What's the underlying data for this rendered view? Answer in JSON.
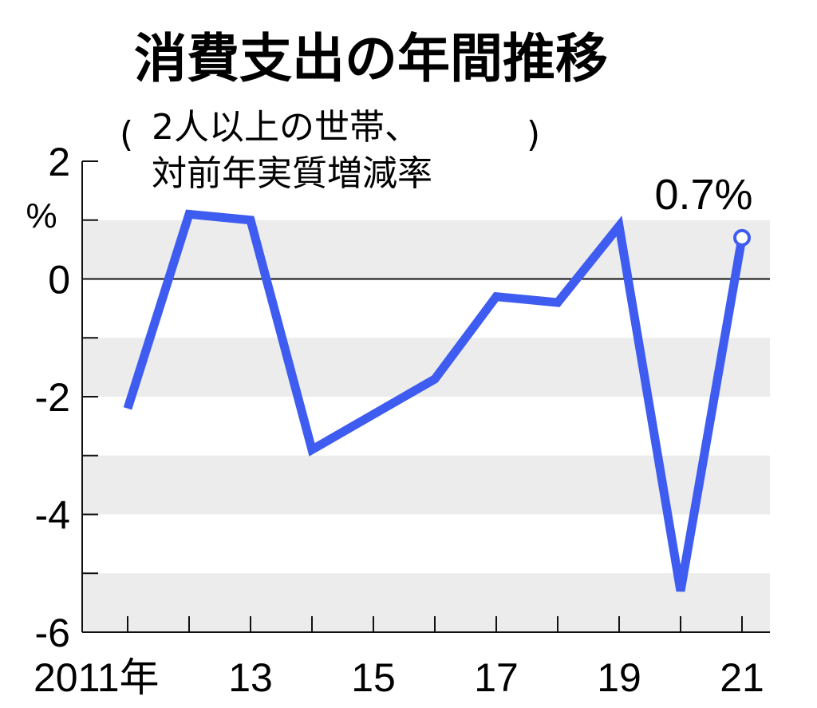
{
  "chart_data": {
    "type": "line",
    "title": "消費支出の年間推移",
    "subtitle_line1": "2人以上の世帯、",
    "subtitle_line2": "対前年実質増減率",
    "ylabel": "%",
    "ylim": [
      -6,
      2
    ],
    "grid": "alternating horizontal bands",
    "x": [
      2011,
      2012,
      2013,
      2014,
      2015,
      2016,
      2017,
      2018,
      2019,
      2020,
      2021
    ],
    "y_ticks": [
      2,
      0,
      -2,
      -4,
      -6
    ],
    "y_tick_labels": [
      "2",
      "0",
      "-2",
      "-4",
      "-6"
    ],
    "x_tick_values": [
      2011,
      2013,
      2015,
      2017,
      2019,
      2021
    ],
    "x_tick_labels": [
      "2011年",
      "13",
      "15",
      "17",
      "19",
      "21"
    ],
    "series": [
      {
        "values": [
          -2.2,
          1.1,
          1.0,
          -2.9,
          -2.3,
          -1.7,
          -0.3,
          -0.4,
          0.9,
          -5.3,
          0.7
        ]
      }
    ],
    "annotation": "0.7%",
    "colors": {
      "line": "#3f5cf0",
      "band": "#ececec",
      "axis": "#111111"
    }
  }
}
